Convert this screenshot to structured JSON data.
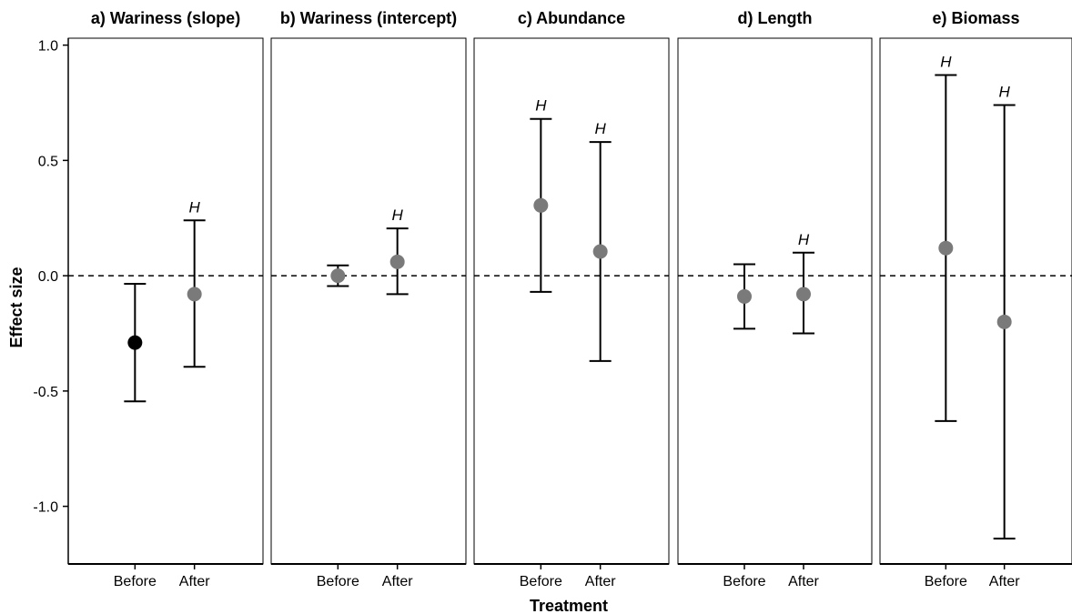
{
  "chart_data": {
    "type": "scatter",
    "subtype": "point-with-errorbars, faceted",
    "xlabel": "Treatment",
    "ylabel": "Effect size",
    "categories": [
      "Before",
      "After"
    ],
    "ylim": [
      -1.25,
      1.03
    ],
    "yticks": [
      1.0,
      0.5,
      0.0,
      -0.5,
      -1.0
    ],
    "ytick_labels": [
      "1.0",
      "0.5",
      "0.0",
      "-0.5",
      "-1.0"
    ],
    "reference_line": {
      "y": 0,
      "style": "dashed"
    },
    "grid": false,
    "colors": {
      "highlight": "#000000",
      "default": "#7a7a7a",
      "errorbar": "#000000"
    },
    "facets": [
      {
        "title": "a) Wariness (slope)",
        "points": [
          {
            "x": "Before",
            "y": -0.29,
            "lower": -0.545,
            "upper": -0.035,
            "color": "highlight",
            "annotation": ""
          },
          {
            "x": "After",
            "y": -0.08,
            "lower": -0.395,
            "upper": 0.24,
            "color": "default",
            "annotation": "H"
          }
        ]
      },
      {
        "title": "b) Wariness (intercept)",
        "points": [
          {
            "x": "Before",
            "y": 0.0,
            "lower": -0.045,
            "upper": 0.045,
            "color": "default",
            "annotation": ""
          },
          {
            "x": "After",
            "y": 0.06,
            "lower": -0.08,
            "upper": 0.205,
            "color": "default",
            "annotation": "H"
          }
        ]
      },
      {
        "title": "c) Abundance",
        "points": [
          {
            "x": "Before",
            "y": 0.305,
            "lower": -0.07,
            "upper": 0.68,
            "color": "default",
            "annotation": "H"
          },
          {
            "x": "After",
            "y": 0.105,
            "lower": -0.37,
            "upper": 0.58,
            "color": "default",
            "annotation": "H"
          }
        ]
      },
      {
        "title": "d) Length",
        "points": [
          {
            "x": "Before",
            "y": -0.09,
            "lower": -0.23,
            "upper": 0.05,
            "color": "default",
            "annotation": ""
          },
          {
            "x": "After",
            "y": -0.08,
            "lower": -0.25,
            "upper": 0.1,
            "color": "default",
            "annotation": "H"
          }
        ]
      },
      {
        "title": "e) Biomass",
        "points": [
          {
            "x": "Before",
            "y": 0.12,
            "lower": -0.63,
            "upper": 0.87,
            "color": "default",
            "annotation": "H"
          },
          {
            "x": "After",
            "y": -0.2,
            "lower": -1.14,
            "upper": 0.74,
            "color": "default",
            "annotation": "H"
          }
        ]
      }
    ]
  }
}
